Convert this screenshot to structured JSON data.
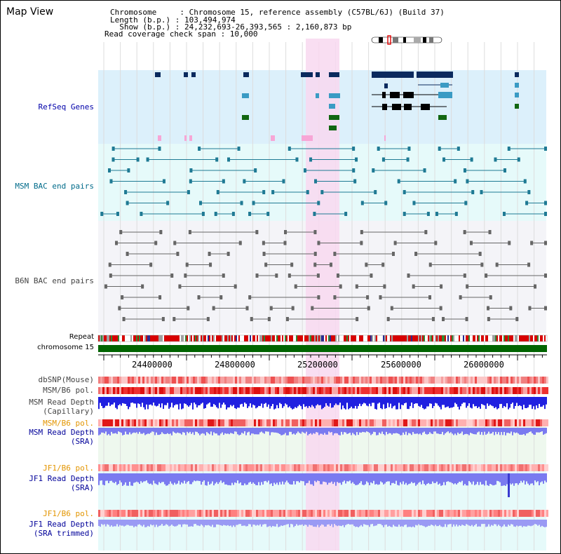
{
  "header": {
    "title": "Map View",
    "info_lines": [
      "Chromosome     : Chromosome 15, reference assembly (C57BL/6J) (Build 37)",
      "Length (b.p.) : 103,494,974",
      "  Show (b.p.) : 24,232,693-26,393,565 : 2,160,873 bp",
      "Read coverage check span : 10,000"
    ]
  },
  "tracks": {
    "refseq": "RefSeq Genes",
    "msm_bac": "MSM BAC end pairs",
    "b6n_bac": "B6N BAC end pairs",
    "repeat": "Repeat",
    "chromosome": "chromosome 15",
    "dbsnp": "dbSNP(Mouse)",
    "msm_b6_pol": "MSM/B6 pol.",
    "msm_read_depth_cap_1": "MSM Read Depth",
    "msm_read_depth_cap_2": "(Capillary)",
    "msm_b6_pol_2": "MSM/B6 pol.",
    "msm_read_depth_sra_1": "MSM Read Depth",
    "msm_read_depth_sra_2": "(SRA)",
    "jf1_b6_pol": "JF1/B6 pol.",
    "jf1_read_depth_1": "JF1 Read Depth",
    "jf1_read_depth_2": "(SRA)",
    "jf1_b6_pol_2": "JF1/B6 pol.",
    "jf1_read_depth_trim_1": "JF1 Read Depth",
    "jf1_read_depth_trim_2": "(SRA trimmed)"
  },
  "ruler": {
    "ticks": [
      "24400000",
      "24800000",
      "25200000",
      "25600000",
      "26000000"
    ]
  },
  "colors": {
    "refseq_bg": "#dcf0fb",
    "msm_bg": "#e6fafa",
    "b6n_bg": "#f4f4f8",
    "highlight": "#f8d8f0",
    "gene_dark": "#0a2a5e",
    "gene_teal": "#3a9bc4",
    "gene_green": "#116611",
    "chromosome_bar": "#006400",
    "depth_blue": "#2020e0",
    "depth_light": "#7a7af0",
    "pol_red": "#ee4444"
  }
}
